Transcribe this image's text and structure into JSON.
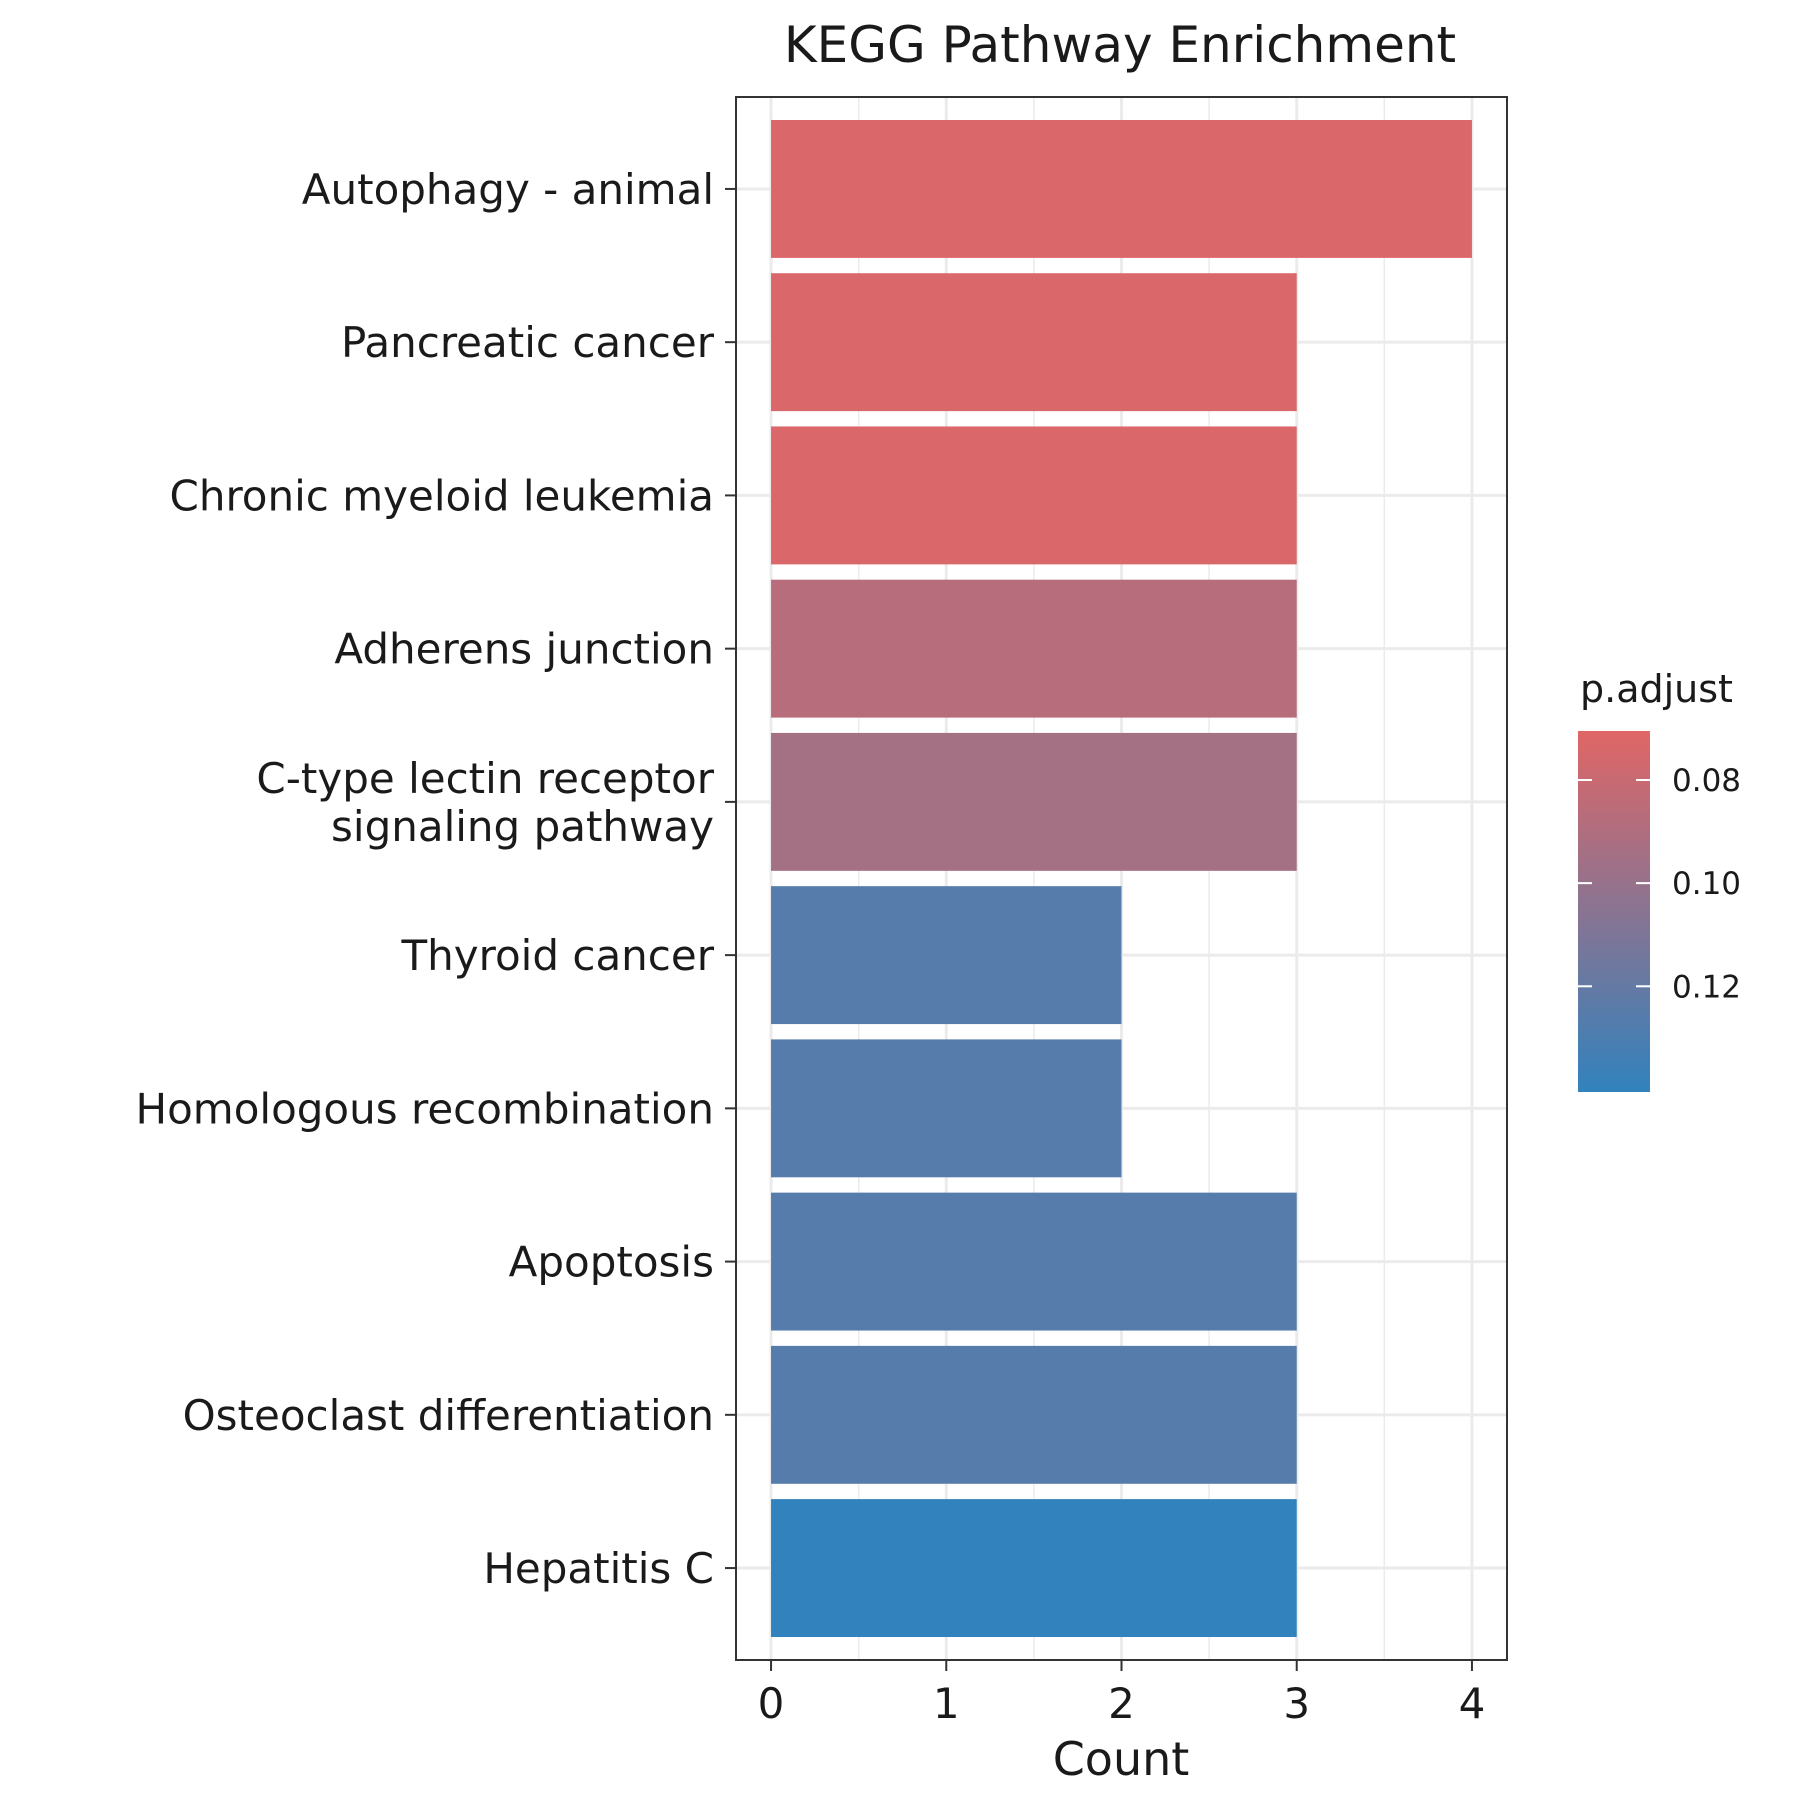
{
  "chart_data": {
    "type": "bar",
    "orientation": "horizontal",
    "title": "KEGG Pathway Enrichment",
    "xlabel": "Count",
    "ylabel": "",
    "xlim": [
      -0.2,
      4.2
    ],
    "x_ticks": [
      0,
      1,
      2,
      3,
      4
    ],
    "grid": true,
    "categories": [
      "Autophagy - animal",
      "Pancreatic cancer",
      "Chronic myeloid leukemia",
      "Adherens junction",
      "C-type lectin receptor signaling pathway",
      "Thyroid cancer",
      "Homologous recombination",
      "Apoptosis",
      "Osteoclast differentiation",
      "Hepatitis C"
    ],
    "category_lines": [
      [
        "Autophagy - animal"
      ],
      [
        "Pancreatic cancer"
      ],
      [
        "Chronic myeloid leukemia"
      ],
      [
        "Adherens junction"
      ],
      [
        "C-type lectin receptor",
        "signaling pathway"
      ],
      [
        "Thyroid cancer"
      ],
      [
        "Homologous recombination"
      ],
      [
        "Apoptosis"
      ],
      [
        "Osteoclast differentiation"
      ],
      [
        "Hepatitis C"
      ]
    ],
    "values": [
      4,
      3,
      3,
      3,
      3,
      2,
      2,
      3,
      3,
      3
    ],
    "p_adjust": [
      0.073,
      0.073,
      0.073,
      0.087,
      0.095,
      0.126,
      0.126,
      0.126,
      0.126,
      0.141
    ],
    "legend": {
      "title": "p.adjust",
      "position": "right",
      "range": [
        0.0705,
        0.1405
      ],
      "ticks": [
        0.08,
        0.1,
        0.12
      ],
      "tick_labels": [
        "0.08",
        "0.10",
        "0.12"
      ],
      "color_low": "#E06666",
      "color_high": "#3182BD"
    }
  }
}
